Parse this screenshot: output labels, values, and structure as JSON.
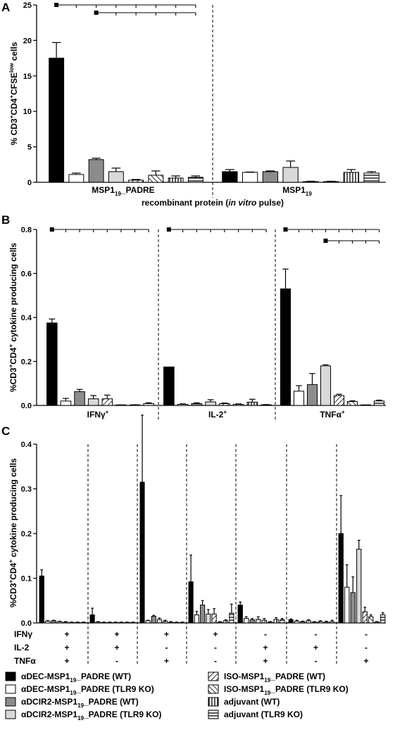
{
  "legend": [
    {
      "label": "αDEC-MSP1₁₉_PADRE (WT)",
      "fill": "#000000"
    },
    {
      "label": "αDEC-MSP1₁₉_PADRE (TLR9 KO)",
      "fill": "#ffffff"
    },
    {
      "label": "αDCIR2-MSP1₁₉_PADRE (WT)",
      "fill": "#8c8c8c"
    },
    {
      "label": "αDCIR2-MSP1₁₉_PADRE (TLR9 KO)",
      "fill": "#d9d9d9"
    },
    {
      "label": "ISO-MSP1₁₉_PADRE (WT)",
      "fill": "pattern:diag-right"
    },
    {
      "label": "ISO-MSP1₁₉_PADRE (TLR9 KO)",
      "fill": "pattern:diag-left"
    },
    {
      "label": "adjuvant (WT)",
      "fill": "pattern:vertical"
    },
    {
      "label": "adjuvant (TLR9 KO)",
      "fill": "pattern:horizontal"
    }
  ],
  "chart_data": [
    {
      "panel": "A",
      "type": "bar",
      "ylabel": "% CD3⁺CD4⁺CFSE^low cells",
      "ylim": [
        0,
        25
      ],
      "yticks": [
        "0",
        "5",
        "10",
        "15",
        "20",
        "25"
      ],
      "xlabel": "recombinant protein (in vitro pulse)",
      "groups": [
        {
          "label": "MSP1₁₉_PADRE",
          "values": [
            17.5,
            1.1,
            3.2,
            1.5,
            0.3,
            1.0,
            0.6,
            0.7
          ],
          "errors": [
            2.2,
            0.2,
            0.2,
            0.5,
            0.1,
            0.6,
            0.3,
            0.2
          ]
        },
        {
          "label": "MSP1₁₉",
          "values": [
            1.5,
            1.4,
            1.5,
            2.1,
            0.1,
            0.1,
            1.4,
            1.3
          ],
          "errors": [
            0.3,
            0.05,
            0.1,
            0.9,
            0.05,
            0.05,
            0.4,
            0.2
          ]
        }
      ],
      "significance": [
        {
          "group": 0,
          "from": 0,
          "to": [
            1,
            2,
            3,
            4,
            5,
            6,
            7
          ]
        },
        {
          "group": 0,
          "from": 2,
          "to": [
            3,
            4,
            5,
            6,
            7
          ]
        }
      ]
    },
    {
      "panel": "B",
      "type": "bar",
      "ylabel": "%CD3⁺CD4⁺ cytokine producing cells",
      "ylim": [
        0,
        0.8
      ],
      "yticks": [
        "0.0",
        "0.2",
        "0.4",
        "0.6",
        "0.8"
      ],
      "groups": [
        {
          "label": "IFNγ⁺",
          "values": [
            0.375,
            0.02,
            0.063,
            0.03,
            0.03,
            0.001,
            0.002,
            0.008
          ],
          "errors": [
            0.018,
            0.012,
            0.01,
            0.015,
            0.017,
            0.001,
            0.001,
            0.004
          ]
        },
        {
          "label": "IL-2⁺",
          "values": [
            0.175,
            0.005,
            0.008,
            0.016,
            0.008,
            0.005,
            0.015,
            0.003
          ],
          "errors": [
            0,
            0.002,
            0.004,
            0.01,
            0.003,
            0.002,
            0.013,
            0.001
          ]
        },
        {
          "label": "TNFα⁺",
          "values": [
            0.53,
            0.065,
            0.095,
            0.18,
            0.045,
            0.018,
            0.001,
            0.02
          ],
          "errors": [
            0.09,
            0.025,
            0.05,
            0.005,
            0.006,
            0.003,
            0.001,
            0.004
          ]
        }
      ],
      "significance": [
        {
          "group": 0,
          "from": 0,
          "to": [
            1,
            2,
            3,
            4,
            5,
            6,
            7
          ]
        },
        {
          "group": 1,
          "from": 0,
          "to": [
            1,
            2,
            3,
            4,
            5,
            6,
            7
          ]
        },
        {
          "group": 2,
          "from": 0,
          "to": [
            1,
            2,
            3,
            4,
            5,
            6,
            7
          ]
        },
        {
          "group": 2,
          "from": 3,
          "to": [
            4,
            5,
            6,
            7
          ]
        }
      ]
    },
    {
      "panel": "C",
      "type": "bar",
      "ylabel": "%CD3⁺CD4⁺ cytokine producing cells",
      "ylim": [
        0,
        0.4
      ],
      "yticks": [
        "0.0",
        "0.1",
        "0.2",
        "0.3",
        "0.4"
      ],
      "row_labels": [
        "IFNγ",
        "IL-2",
        "TNFα"
      ],
      "groups": [
        {
          "marks": [
            "+",
            "+",
            "+"
          ],
          "values": [
            0.105,
            0.004,
            0.005,
            0.003,
            0.002,
            0.001,
            0.001,
            0.001
          ],
          "errors": [
            0.014,
            0.001,
            0.001,
            0.001,
            0.001,
            0.001,
            0.001,
            0.001
          ]
        },
        {
          "marks": [
            "+",
            "+",
            "-"
          ],
          "values": [
            0.018,
            0.002,
            0.001,
            0.001,
            0.001,
            0.001,
            0.001,
            0.001
          ],
          "errors": [
            0.015,
            0.001,
            0.001,
            0.001,
            0.001,
            0.001,
            0.001,
            0.001
          ]
        },
        {
          "marks": [
            "+",
            "-",
            "+"
          ],
          "values": [
            0.315,
            0.005,
            0.015,
            0.008,
            0.004,
            0.002,
            0.001,
            0.001
          ],
          "errors": [
            0.15,
            0.001,
            0.002,
            0.003,
            0.002,
            0.001,
            0.001,
            0.001
          ]
        },
        {
          "marks": [
            "+",
            "-",
            "-"
          ],
          "values": [
            0.092,
            0.018,
            0.04,
            0.02,
            0.02,
            0.002,
            0.005,
            0.022
          ],
          "errors": [
            0.06,
            0.008,
            0.01,
            0.01,
            0.012,
            0.001,
            0.002,
            0.02
          ]
        },
        {
          "marks": [
            "-",
            "+",
            "+"
          ],
          "values": [
            0.04,
            0.01,
            0.007,
            0.008,
            0.006,
            0.002,
            0.008,
            0.007
          ],
          "errors": [
            0.007,
            0.004,
            0.003,
            0.006,
            0.004,
            0.001,
            0.004,
            0.003
          ]
        },
        {
          "marks": [
            "-",
            "+",
            "-"
          ],
          "values": [
            0.007,
            0.004,
            0.003,
            0.005,
            0.002,
            0.003,
            0.002,
            0.003
          ],
          "errors": [
            0.002,
            0.002,
            0.001,
            0.002,
            0.001,
            0.002,
            0.002,
            0.003
          ]
        },
        {
          "marks": [
            "-",
            "-",
            "+"
          ],
          "values": [
            0.2,
            0.08,
            0.068,
            0.165,
            0.025,
            0.014,
            0.002,
            0.018
          ],
          "errors": [
            0.085,
            0.05,
            0.035,
            0.02,
            0.01,
            0.004,
            0.001,
            0.005
          ]
        }
      ]
    }
  ]
}
